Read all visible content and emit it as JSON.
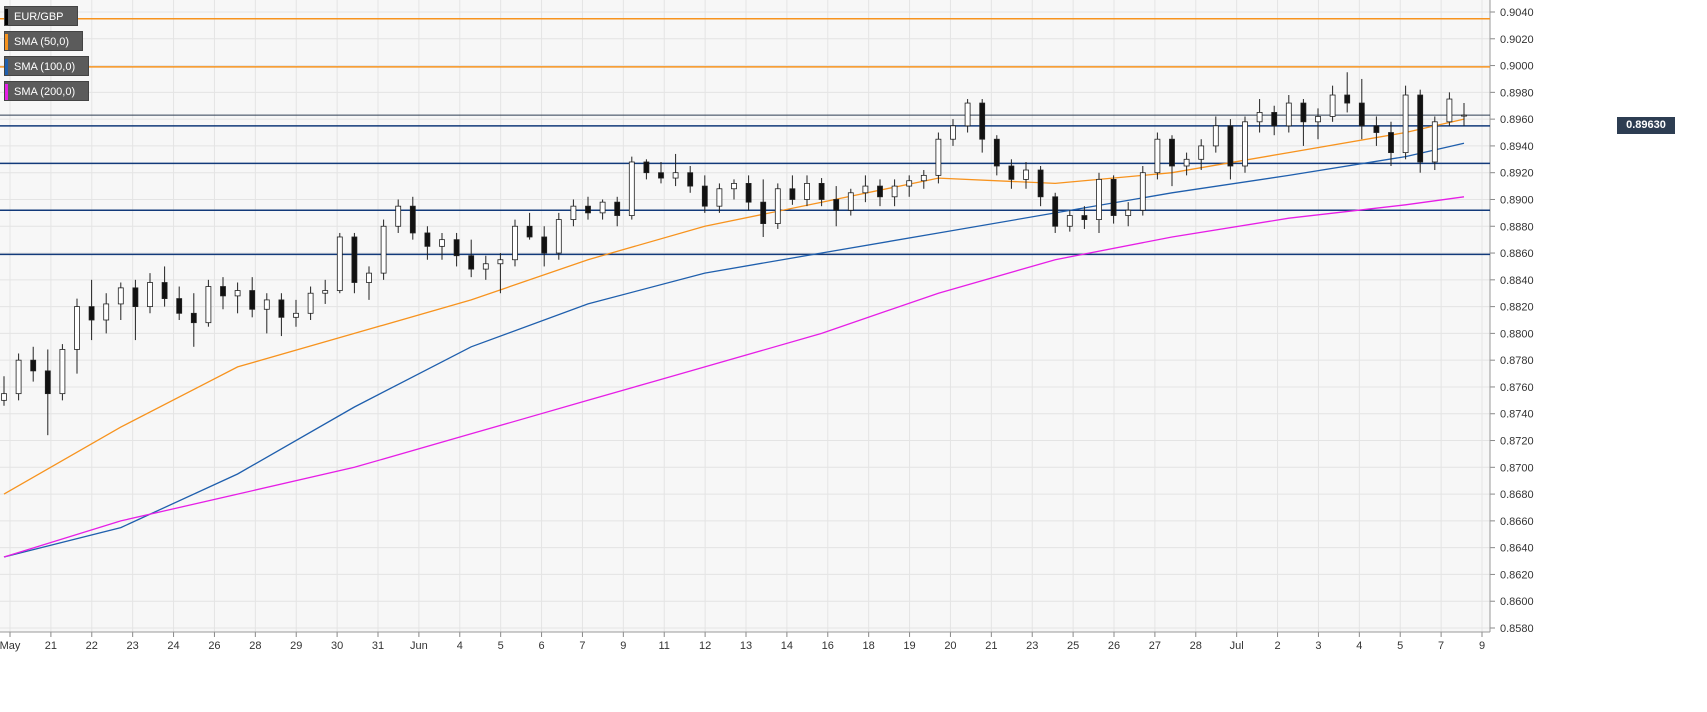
{
  "legend": [
    {
      "label": "EUR/GBP",
      "color": "#000000"
    },
    {
      "label": "SMA (50,0)",
      "color": "#f7931e"
    },
    {
      "label": "SMA (100,0)",
      "color": "#1f5fad"
    },
    {
      "label": "SMA (200,0)",
      "color": "#e61ee6"
    }
  ],
  "price_tag": "0.89630",
  "chart_data": {
    "type": "line",
    "title": "",
    "xlabel": "",
    "ylabel": "",
    "ylim": [
      0.858,
      0.904
    ],
    "grid": true,
    "y_ticks": [
      "0.9040",
      "0.9020",
      "0.9000",
      "0.8980",
      "0.8960",
      "0.8940",
      "0.8920",
      "0.8900",
      "0.8880",
      "0.8860",
      "0.8840",
      "0.8820",
      "0.8800",
      "0.8780",
      "0.8760",
      "0.8740",
      "0.8720",
      "0.8700",
      "0.8680",
      "0.8660",
      "0.8640",
      "0.8620",
      "0.8600",
      "0.8580"
    ],
    "x_ticks": [
      "May",
      "21",
      "22",
      "23",
      "24",
      "26",
      "28",
      "29",
      "30",
      "31",
      "Jun",
      "4",
      "5",
      "6",
      "7",
      "9",
      "11",
      "12",
      "13",
      "14",
      "16",
      "18",
      "19",
      "20",
      "21",
      "23",
      "25",
      "26",
      "27",
      "28",
      "Jul",
      "2",
      "3",
      "4",
      "5",
      "7",
      "9"
    ],
    "horizontal_levels": [
      {
        "value": 0.9035,
        "color": "#f7931e"
      },
      {
        "value": 0.8999,
        "color": "#f7931e"
      },
      {
        "value": 0.8955,
        "color": "#123a7a"
      },
      {
        "value": 0.8927,
        "color": "#123a7a"
      },
      {
        "value": 0.8892,
        "color": "#123a7a"
      },
      {
        "value": 0.8859,
        "color": "#123a7a"
      }
    ],
    "last_price": 0.8963,
    "x_range": [
      0,
      100
    ],
    "price_series": [
      {
        "x": 0,
        "open": 0.875,
        "high": 0.8768,
        "low": 0.8746,
        "close": 0.8755
      },
      {
        "x": 1,
        "open": 0.8755,
        "high": 0.8785,
        "low": 0.875,
        "close": 0.878
      },
      {
        "x": 2,
        "open": 0.878,
        "high": 0.879,
        "low": 0.8764,
        "close": 0.8772
      },
      {
        "x": 3,
        "open": 0.8772,
        "high": 0.8788,
        "low": 0.8724,
        "close": 0.8755
      },
      {
        "x": 4,
        "open": 0.8755,
        "high": 0.8792,
        "low": 0.875,
        "close": 0.8788
      },
      {
        "x": 5,
        "open": 0.8788,
        "high": 0.8826,
        "low": 0.877,
        "close": 0.882
      },
      {
        "x": 6,
        "open": 0.882,
        "high": 0.884,
        "low": 0.8795,
        "close": 0.881
      },
      {
        "x": 7,
        "open": 0.881,
        "high": 0.883,
        "low": 0.88,
        "close": 0.8822
      },
      {
        "x": 8,
        "open": 0.8822,
        "high": 0.8838,
        "low": 0.881,
        "close": 0.8834
      },
      {
        "x": 9,
        "open": 0.8834,
        "high": 0.884,
        "low": 0.8795,
        "close": 0.882
      },
      {
        "x": 10,
        "open": 0.882,
        "high": 0.8845,
        "low": 0.8815,
        "close": 0.8838
      },
      {
        "x": 11,
        "open": 0.8838,
        "high": 0.885,
        "low": 0.882,
        "close": 0.8826
      },
      {
        "x": 12,
        "open": 0.8826,
        "high": 0.8835,
        "low": 0.881,
        "close": 0.8815
      },
      {
        "x": 13,
        "open": 0.8815,
        "high": 0.883,
        "low": 0.879,
        "close": 0.8808
      },
      {
        "x": 14,
        "open": 0.8808,
        "high": 0.884,
        "low": 0.8805,
        "close": 0.8835
      },
      {
        "x": 15,
        "open": 0.8835,
        "high": 0.8842,
        "low": 0.8818,
        "close": 0.8828
      },
      {
        "x": 16,
        "open": 0.8828,
        "high": 0.8838,
        "low": 0.8815,
        "close": 0.8832
      },
      {
        "x": 17,
        "open": 0.8832,
        "high": 0.8842,
        "low": 0.8812,
        "close": 0.8818
      },
      {
        "x": 18,
        "open": 0.8818,
        "high": 0.883,
        "low": 0.88,
        "close": 0.8825
      },
      {
        "x": 19,
        "open": 0.8825,
        "high": 0.883,
        "low": 0.8798,
        "close": 0.8812
      },
      {
        "x": 20,
        "open": 0.8812,
        "high": 0.8825,
        "low": 0.8805,
        "close": 0.8815
      },
      {
        "x": 21,
        "open": 0.8815,
        "high": 0.8835,
        "low": 0.881,
        "close": 0.883
      },
      {
        "x": 22,
        "open": 0.883,
        "high": 0.884,
        "low": 0.8822,
        "close": 0.8832
      },
      {
        "x": 23,
        "open": 0.8832,
        "high": 0.8875,
        "low": 0.883,
        "close": 0.8872
      },
      {
        "x": 24,
        "open": 0.8872,
        "high": 0.8875,
        "low": 0.883,
        "close": 0.8838
      },
      {
        "x": 25,
        "open": 0.8838,
        "high": 0.885,
        "low": 0.8825,
        "close": 0.8845
      },
      {
        "x": 26,
        "open": 0.8845,
        "high": 0.8885,
        "low": 0.884,
        "close": 0.888
      },
      {
        "x": 27,
        "open": 0.888,
        "high": 0.89,
        "low": 0.8875,
        "close": 0.8895
      },
      {
        "x": 28,
        "open": 0.8895,
        "high": 0.8902,
        "low": 0.887,
        "close": 0.8875
      },
      {
        "x": 29,
        "open": 0.8875,
        "high": 0.888,
        "low": 0.8855,
        "close": 0.8865
      },
      {
        "x": 30,
        "open": 0.8865,
        "high": 0.8875,
        "low": 0.8855,
        "close": 0.887
      },
      {
        "x": 31,
        "open": 0.887,
        "high": 0.8875,
        "low": 0.885,
        "close": 0.8858
      },
      {
        "x": 32,
        "open": 0.8858,
        "high": 0.887,
        "low": 0.8842,
        "close": 0.8848
      },
      {
        "x": 33,
        "open": 0.8848,
        "high": 0.8858,
        "low": 0.884,
        "close": 0.8852
      },
      {
        "x": 34,
        "open": 0.8852,
        "high": 0.886,
        "low": 0.883,
        "close": 0.8855
      },
      {
        "x": 35,
        "open": 0.8855,
        "high": 0.8885,
        "low": 0.885,
        "close": 0.888
      },
      {
        "x": 36,
        "open": 0.888,
        "high": 0.889,
        "low": 0.887,
        "close": 0.8872
      },
      {
        "x": 37,
        "open": 0.8872,
        "high": 0.888,
        "low": 0.885,
        "close": 0.886
      },
      {
        "x": 38,
        "open": 0.886,
        "high": 0.889,
        "low": 0.8855,
        "close": 0.8885
      },
      {
        "x": 39,
        "open": 0.8885,
        "high": 0.89,
        "low": 0.888,
        "close": 0.8895
      },
      {
        "x": 40,
        "open": 0.8895,
        "high": 0.8902,
        "low": 0.8885,
        "close": 0.889
      },
      {
        "x": 41,
        "open": 0.889,
        "high": 0.89,
        "low": 0.8885,
        "close": 0.8898
      },
      {
        "x": 42,
        "open": 0.8898,
        "high": 0.8902,
        "low": 0.888,
        "close": 0.8888
      },
      {
        "x": 43,
        "open": 0.8888,
        "high": 0.8932,
        "low": 0.8885,
        "close": 0.8928
      },
      {
        "x": 44,
        "open": 0.8928,
        "high": 0.893,
        "low": 0.8915,
        "close": 0.892
      },
      {
        "x": 45,
        "open": 0.892,
        "high": 0.8928,
        "low": 0.8912,
        "close": 0.8916
      },
      {
        "x": 46,
        "open": 0.8916,
        "high": 0.8934,
        "low": 0.891,
        "close": 0.892
      },
      {
        "x": 47,
        "open": 0.892,
        "high": 0.8925,
        "low": 0.8905,
        "close": 0.891
      },
      {
        "x": 48,
        "open": 0.891,
        "high": 0.8918,
        "low": 0.889,
        "close": 0.8895
      },
      {
        "x": 49,
        "open": 0.8895,
        "high": 0.8912,
        "low": 0.889,
        "close": 0.8908
      },
      {
        "x": 50,
        "open": 0.8908,
        "high": 0.8915,
        "low": 0.89,
        "close": 0.8912
      },
      {
        "x": 51,
        "open": 0.8912,
        "high": 0.8918,
        "low": 0.8892,
        "close": 0.8898
      },
      {
        "x": 52,
        "open": 0.8898,
        "high": 0.8915,
        "low": 0.8872,
        "close": 0.8882
      },
      {
        "x": 53,
        "open": 0.8882,
        "high": 0.8912,
        "low": 0.8878,
        "close": 0.8908
      },
      {
        "x": 54,
        "open": 0.8908,
        "high": 0.8918,
        "low": 0.8896,
        "close": 0.89
      },
      {
        "x": 55,
        "open": 0.89,
        "high": 0.8918,
        "low": 0.8895,
        "close": 0.8912
      },
      {
        "x": 56,
        "open": 0.8912,
        "high": 0.8916,
        "low": 0.8895,
        "close": 0.89
      },
      {
        "x": 57,
        "open": 0.89,
        "high": 0.891,
        "low": 0.888,
        "close": 0.8892
      },
      {
        "x": 58,
        "open": 0.8892,
        "high": 0.8908,
        "low": 0.8888,
        "close": 0.8905
      },
      {
        "x": 59,
        "open": 0.8905,
        "high": 0.8918,
        "low": 0.8898,
        "close": 0.891
      },
      {
        "x": 60,
        "open": 0.891,
        "high": 0.8915,
        "low": 0.8895,
        "close": 0.8902
      },
      {
        "x": 61,
        "open": 0.8902,
        "high": 0.8915,
        "low": 0.8895,
        "close": 0.891
      },
      {
        "x": 62,
        "open": 0.891,
        "high": 0.8918,
        "low": 0.8902,
        "close": 0.8914
      },
      {
        "x": 63,
        "open": 0.8914,
        "high": 0.8922,
        "low": 0.8908,
        "close": 0.8918
      },
      {
        "x": 64,
        "open": 0.8918,
        "high": 0.895,
        "low": 0.8912,
        "close": 0.8945
      },
      {
        "x": 65,
        "open": 0.8945,
        "high": 0.896,
        "low": 0.894,
        "close": 0.8955
      },
      {
        "x": 66,
        "open": 0.8955,
        "high": 0.8975,
        "low": 0.895,
        "close": 0.8972
      },
      {
        "x": 67,
        "open": 0.8972,
        "high": 0.8975,
        "low": 0.8935,
        "close": 0.8945
      },
      {
        "x": 68,
        "open": 0.8945,
        "high": 0.8948,
        "low": 0.8918,
        "close": 0.8925
      },
      {
        "x": 69,
        "open": 0.8925,
        "high": 0.893,
        "low": 0.8908,
        "close": 0.8915
      },
      {
        "x": 70,
        "open": 0.8915,
        "high": 0.8928,
        "low": 0.8908,
        "close": 0.8922
      },
      {
        "x": 71,
        "open": 0.8922,
        "high": 0.8925,
        "low": 0.8895,
        "close": 0.8902
      },
      {
        "x": 72,
        "open": 0.8902,
        "high": 0.8905,
        "low": 0.8875,
        "close": 0.888
      },
      {
        "x": 73,
        "open": 0.888,
        "high": 0.8892,
        "low": 0.8876,
        "close": 0.8888
      },
      {
        "x": 74,
        "open": 0.8888,
        "high": 0.8895,
        "low": 0.8878,
        "close": 0.8885
      },
      {
        "x": 75,
        "open": 0.8885,
        "high": 0.892,
        "low": 0.8875,
        "close": 0.8915
      },
      {
        "x": 76,
        "open": 0.8915,
        "high": 0.8918,
        "low": 0.8882,
        "close": 0.8888
      },
      {
        "x": 77,
        "open": 0.8888,
        "high": 0.8898,
        "low": 0.888,
        "close": 0.8892
      },
      {
        "x": 78,
        "open": 0.8892,
        "high": 0.8925,
        "low": 0.8888,
        "close": 0.892
      },
      {
        "x": 79,
        "open": 0.892,
        "high": 0.895,
        "low": 0.8915,
        "close": 0.8945
      },
      {
        "x": 80,
        "open": 0.8945,
        "high": 0.8948,
        "low": 0.891,
        "close": 0.8925
      },
      {
        "x": 81,
        "open": 0.8925,
        "high": 0.8935,
        "low": 0.8918,
        "close": 0.893
      },
      {
        "x": 82,
        "open": 0.893,
        "high": 0.8945,
        "low": 0.8922,
        "close": 0.894
      },
      {
        "x": 83,
        "open": 0.894,
        "high": 0.8962,
        "low": 0.8935,
        "close": 0.8955
      },
      {
        "x": 84,
        "open": 0.8955,
        "high": 0.896,
        "low": 0.8915,
        "close": 0.8925
      },
      {
        "x": 85,
        "open": 0.8925,
        "high": 0.8962,
        "low": 0.892,
        "close": 0.8958
      },
      {
        "x": 86,
        "open": 0.8958,
        "high": 0.8975,
        "low": 0.895,
        "close": 0.8965
      },
      {
        "x": 87,
        "open": 0.8965,
        "high": 0.897,
        "low": 0.8948,
        "close": 0.8955
      },
      {
        "x": 88,
        "open": 0.8955,
        "high": 0.8978,
        "low": 0.895,
        "close": 0.8972
      },
      {
        "x": 89,
        "open": 0.8972,
        "high": 0.8975,
        "low": 0.894,
        "close": 0.8958
      },
      {
        "x": 90,
        "open": 0.8958,
        "high": 0.8968,
        "low": 0.8945,
        "close": 0.8962
      },
      {
        "x": 91,
        "open": 0.8962,
        "high": 0.8985,
        "low": 0.8958,
        "close": 0.8978
      },
      {
        "x": 92,
        "open": 0.8978,
        "high": 0.8995,
        "low": 0.8965,
        "close": 0.8972
      },
      {
        "x": 93,
        "open": 0.8972,
        "high": 0.899,
        "low": 0.8945,
        "close": 0.8955
      },
      {
        "x": 94,
        "open": 0.8955,
        "high": 0.8962,
        "low": 0.894,
        "close": 0.895
      },
      {
        "x": 95,
        "open": 0.895,
        "high": 0.8958,
        "low": 0.8925,
        "close": 0.8935
      },
      {
        "x": 96,
        "open": 0.8935,
        "high": 0.8985,
        "low": 0.893,
        "close": 0.8978
      },
      {
        "x": 97,
        "open": 0.8978,
        "high": 0.8982,
        "low": 0.892,
        "close": 0.8928
      },
      {
        "x": 98,
        "open": 0.8928,
        "high": 0.8962,
        "low": 0.8922,
        "close": 0.8958
      },
      {
        "x": 99,
        "open": 0.8958,
        "high": 0.898,
        "low": 0.8955,
        "close": 0.8975
      },
      {
        "x": 100,
        "open": 0.8963,
        "high": 0.8972,
        "low": 0.8955,
        "close": 0.8963
      }
    ],
    "series": [
      {
        "color": "#f7931e",
        "points": [
          [
            0,
            0.868
          ],
          [
            8,
            0.873
          ],
          [
            16,
            0.8775
          ],
          [
            24,
            0.88
          ],
          [
            32,
            0.8825
          ],
          [
            40,
            0.8855
          ],
          [
            48,
            0.888
          ],
          [
            56,
            0.8898
          ],
          [
            64,
            0.8916
          ],
          [
            72,
            0.8912
          ],
          [
            80,
            0.892
          ],
          [
            88,
            0.8935
          ],
          [
            96,
            0.895
          ],
          [
            100,
            0.896
          ]
        ]
      },
      {
        "color": "#1f5fad",
        "points": [
          [
            0,
            0.8633
          ],
          [
            8,
            0.8655
          ],
          [
            16,
            0.8695
          ],
          [
            24,
            0.8745
          ],
          [
            32,
            0.879
          ],
          [
            40,
            0.8822
          ],
          [
            48,
            0.8845
          ],
          [
            56,
            0.886
          ],
          [
            64,
            0.8875
          ],
          [
            72,
            0.889
          ],
          [
            80,
            0.8905
          ],
          [
            88,
            0.8918
          ],
          [
            96,
            0.8932
          ],
          [
            100,
            0.8942
          ]
        ]
      },
      {
        "color": "#e61ee6",
        "points": [
          [
            0,
            0.8633
          ],
          [
            8,
            0.866
          ],
          [
            16,
            0.868
          ],
          [
            24,
            0.87
          ],
          [
            32,
            0.8725
          ],
          [
            40,
            0.875
          ],
          [
            48,
            0.8775
          ],
          [
            56,
            0.88
          ],
          [
            64,
            0.883
          ],
          [
            72,
            0.8855
          ],
          [
            80,
            0.8872
          ],
          [
            88,
            0.8886
          ],
          [
            96,
            0.8896
          ],
          [
            100,
            0.8902
          ]
        ]
      }
    ]
  }
}
